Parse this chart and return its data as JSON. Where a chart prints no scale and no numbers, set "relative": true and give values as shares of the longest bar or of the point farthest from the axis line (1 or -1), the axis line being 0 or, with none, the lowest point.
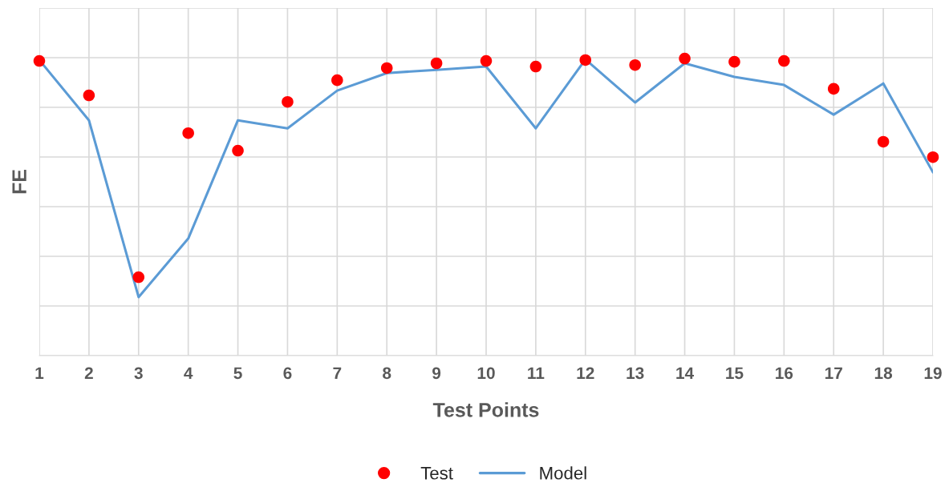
{
  "chart_data": {
    "type": "line",
    "relative": true,
    "xlabel": "Test Points",
    "ylabel": "FE",
    "categories": [
      "1",
      "2",
      "3",
      "4",
      "5",
      "6",
      "7",
      "8",
      "9",
      "10",
      "11",
      "12",
      "13",
      "14",
      "15",
      "16",
      "17",
      "18",
      "19"
    ],
    "series": [
      {
        "name": "Test",
        "type": "scatter",
        "color": "#ff0000",
        "marker": "circle",
        "values": [
          0.992,
          0.876,
          0.264,
          0.749,
          0.69,
          0.854,
          0.927,
          0.968,
          0.984,
          0.992,
          0.973,
          0.995,
          0.978,
          1.0,
          0.989,
          0.992,
          0.898,
          0.72,
          0.668
        ]
      },
      {
        "name": "Model",
        "color": "#5b9bd5",
        "marker": "none",
        "values": [
          0.995,
          0.792,
          0.197,
          0.394,
          0.792,
          0.765,
          0.892,
          0.951,
          0.962,
          0.973,
          0.765,
          0.997,
          0.852,
          0.984,
          0.938,
          0.911,
          0.811,
          0.916,
          0.617
        ]
      }
    ],
    "grid": true,
    "legend": "bottom"
  }
}
